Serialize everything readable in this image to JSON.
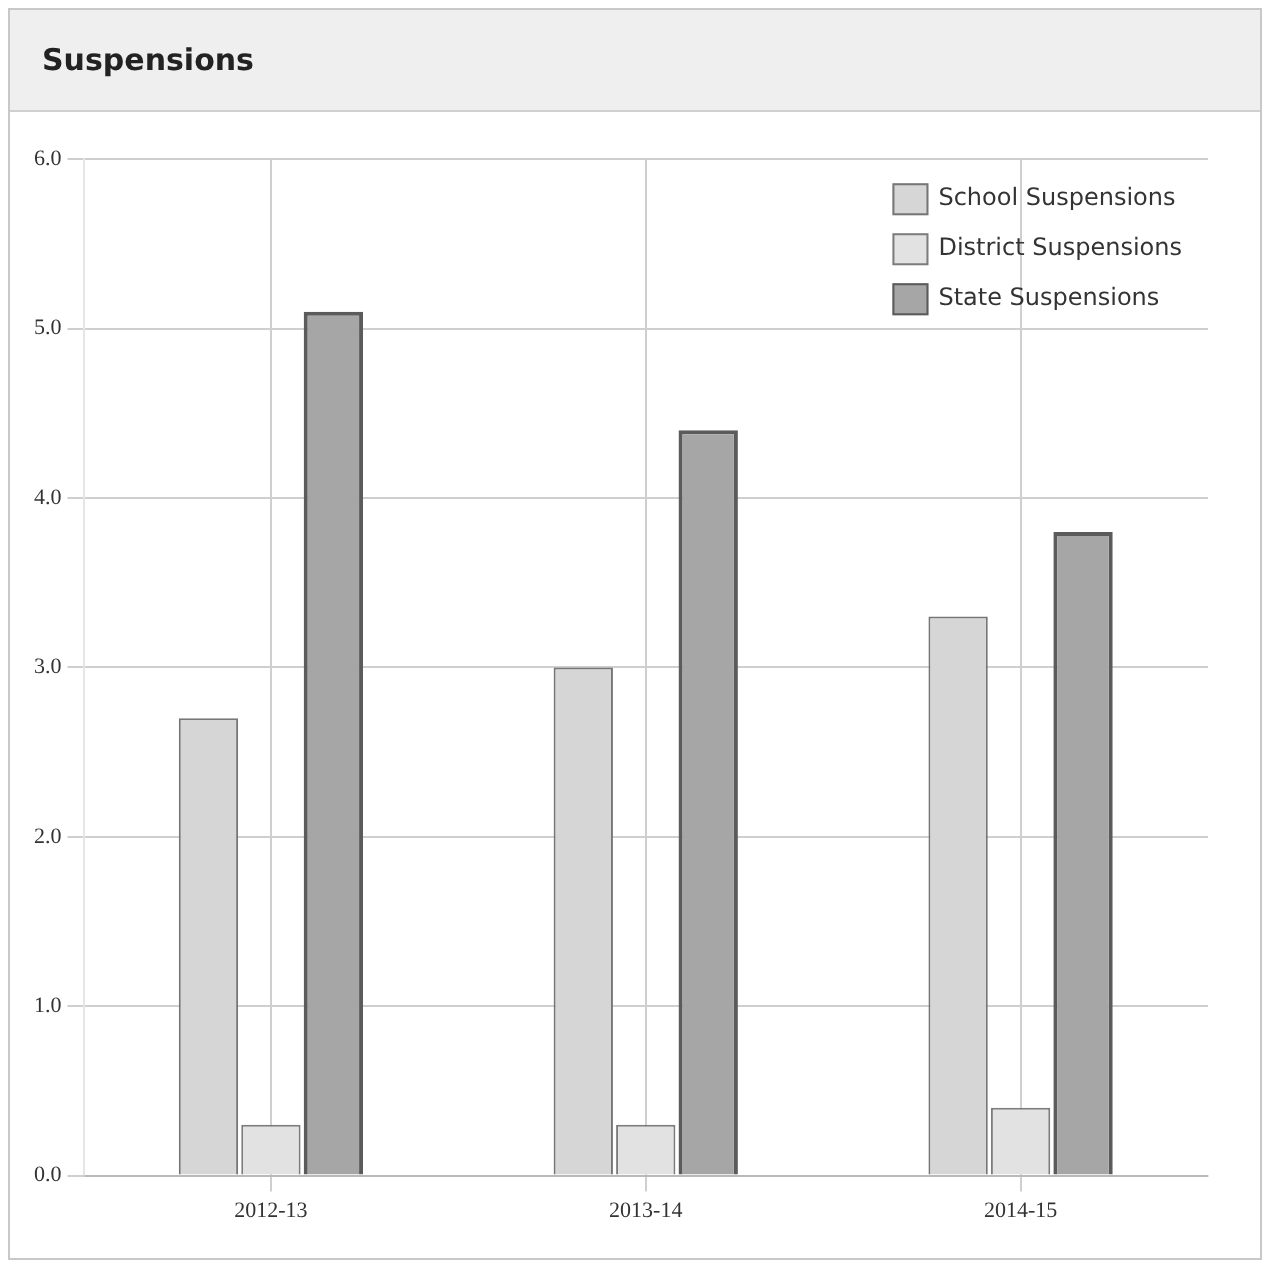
{
  "chart_data": {
    "type": "bar",
    "title": "Suspensions",
    "categories": [
      "2012-13",
      "2013-14",
      "2014-15"
    ],
    "series": [
      {
        "name": "School Suspensions",
        "color": "#d6d6d6",
        "values": [
          2.7,
          3.0,
          3.3
        ]
      },
      {
        "name": "District Suspensions",
        "color": "#e2e2e2",
        "values": [
          0.3,
          0.3,
          0.4
        ]
      },
      {
        "name": "State Suspensions",
        "color": "#a6a6a6",
        "values": [
          5.1,
          4.4,
          3.8
        ]
      }
    ],
    "ylim": [
      0,
      6
    ],
    "yticks": [
      {
        "value": 0,
        "label": "0.0"
      },
      {
        "value": 1,
        "label": "1.0"
      },
      {
        "value": 2,
        "label": "2.0"
      },
      {
        "value": 3,
        "label": "3.0"
      },
      {
        "value": 4,
        "label": "4.0"
      },
      {
        "value": 5,
        "label": "5.0"
      },
      {
        "value": 6,
        "label": "6.0"
      }
    ],
    "grid": true,
    "legend": "top right"
  }
}
